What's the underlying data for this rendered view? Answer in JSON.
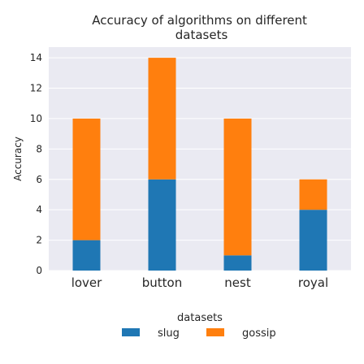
{
  "chart_data": {
    "type": "bar",
    "stacked": true,
    "title": "Accuracy of algorithms on different datasets",
    "xlabel": "",
    "ylabel": "Accuracy",
    "categories": [
      "lover",
      "button",
      "nest",
      "royal"
    ],
    "series": [
      {
        "name": "slug",
        "values": [
          2,
          6,
          1,
          4
        ],
        "color": "#1f77b4"
      },
      {
        "name": "gossip",
        "values": [
          8,
          8,
          9,
          2
        ],
        "color": "#ff7f0e"
      }
    ],
    "ylim": [
      0,
      14.7
    ],
    "yticks": [
      0,
      2,
      4,
      6,
      8,
      10,
      12,
      14
    ],
    "grid": true,
    "background": "#eaeaf2",
    "legend": {
      "title": "datasets",
      "placement": "bottom-center"
    }
  }
}
